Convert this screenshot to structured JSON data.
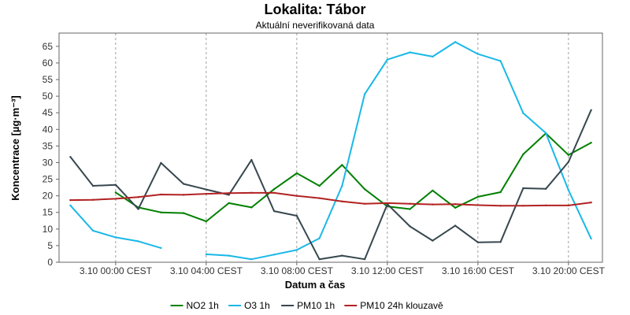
{
  "chart_data": {
    "type": "line",
    "title": "Lokalita: Tábor",
    "subtitle": "Aktuální neverifikovaná data",
    "xlabel": "Datum a čas",
    "ylabel": "Koncentrace [µg·m⁻³]",
    "ylim": [
      0,
      69
    ],
    "yticks": [
      0,
      5,
      10,
      15,
      20,
      25,
      30,
      35,
      40,
      45,
      50,
      55,
      60,
      65
    ],
    "xlim": [
      -2.5,
      21.5
    ],
    "xticks": [
      {
        "hour": 0,
        "label": "3.10 00:00 CEST"
      },
      {
        "hour": 4,
        "label": "3.10 04:00 CEST"
      },
      {
        "hour": 8,
        "label": "3.10 08:00 CEST"
      },
      {
        "hour": 12,
        "label": "3.10 12:00 CEST"
      },
      {
        "hour": 16,
        "label": "3.10 16:00 CEST"
      },
      {
        "hour": 20,
        "label": "3.10 20:00 CEST"
      }
    ],
    "grid": true,
    "legend_position": "bottom",
    "x": [
      -2,
      -1,
      0,
      1,
      2,
      3,
      4,
      5,
      6,
      7,
      8,
      9,
      10,
      11,
      12,
      13,
      14,
      15,
      16,
      17,
      18,
      19,
      20,
      21
    ],
    "series": [
      {
        "name": "NO2 1h",
        "color": "#008000",
        "values": [
          null,
          null,
          21.0,
          16.5,
          15.0,
          14.8,
          12.3,
          17.8,
          16.5,
          22.0,
          26.8,
          23.0,
          29.3,
          22.0,
          16.8,
          16.0,
          21.6,
          16.4,
          19.7,
          21.1,
          32.5,
          38.8,
          32.3,
          36.0
        ]
      },
      {
        "name": "O3 1h",
        "color": "#1ab8e8",
        "values": [
          17.1,
          9.5,
          7.5,
          6.3,
          4.3,
          null,
          2.4,
          2.0,
          0.9,
          2.3,
          3.7,
          7.2,
          23.0,
          50.6,
          61.0,
          63.2,
          61.9,
          66.3,
          62.7,
          60.6,
          44.9,
          38.9,
          21.7,
          7.1
        ]
      },
      {
        "name": "PM10 1h",
        "color": "#37474f",
        "values": [
          31.7,
          23.0,
          23.3,
          16.0,
          29.9,
          23.6,
          21.9,
          20.3,
          30.8,
          15.4,
          14.0,
          0.9,
          2.0,
          0.9,
          17.5,
          10.8,
          6.5,
          11.0,
          6.0,
          6.1,
          22.3,
          22.1,
          30.2,
          45.8
        ]
      },
      {
        "name": "PM10 24h klouzavě",
        "color": "#b22222",
        "values": [
          18.7,
          18.8,
          19.1,
          19.6,
          20.4,
          20.3,
          20.6,
          20.8,
          20.9,
          20.9,
          20.0,
          19.3,
          18.3,
          17.6,
          17.8,
          17.6,
          17.4,
          17.5,
          17.2,
          17.0,
          17.0,
          17.1,
          17.1,
          18.0
        ]
      }
    ]
  }
}
